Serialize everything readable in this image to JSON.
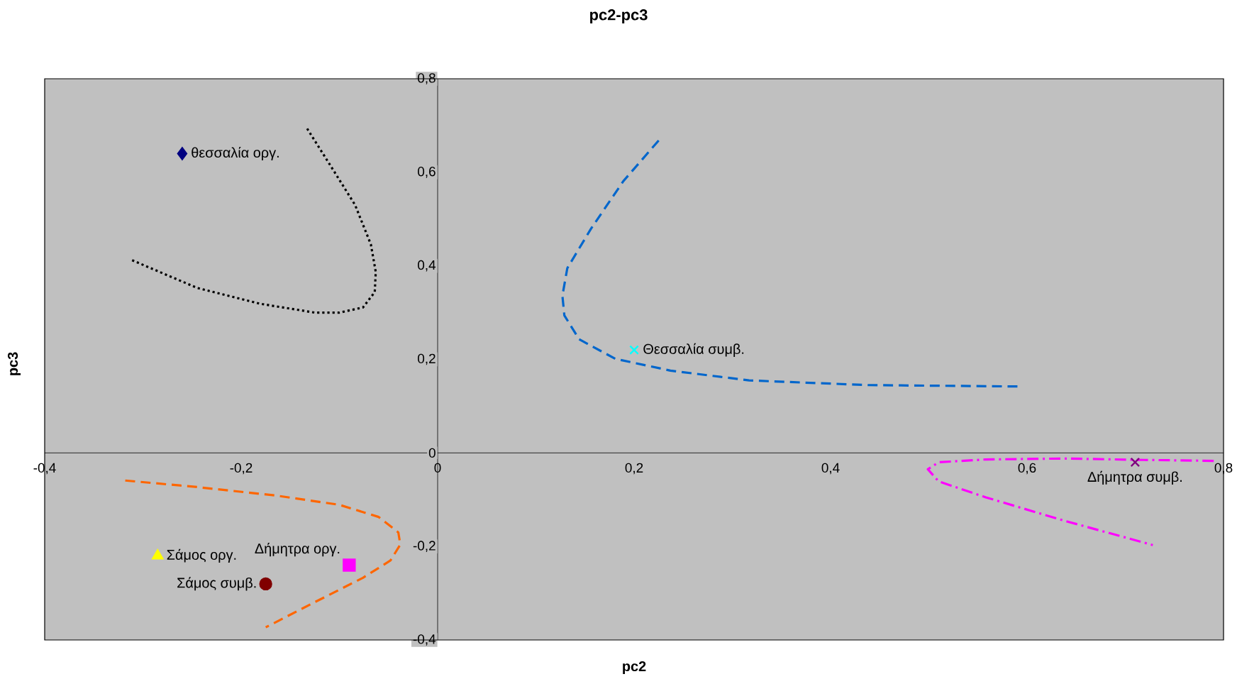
{
  "chart_data": {
    "type": "scatter",
    "title": "pc2-pc3",
    "xlabel": "pc2",
    "ylabel": "pc3",
    "xlim": [
      -0.4,
      0.8
    ],
    "ylim": [
      -0.4,
      0.8
    ],
    "xticks": [
      {
        "value": -0.4,
        "label": "-0,4"
      },
      {
        "value": -0.2,
        "label": "-0,2"
      },
      {
        "value": 0,
        "label": "0"
      },
      {
        "value": 0.2,
        "label": "0,2"
      },
      {
        "value": 0.4,
        "label": "0,4"
      },
      {
        "value": 0.6,
        "label": "0,6"
      },
      {
        "value": 0.8,
        "label": "0,8"
      }
    ],
    "yticks": [
      {
        "value": -0.4,
        "label": "-0,4"
      },
      {
        "value": -0.2,
        "label": "-0,2"
      },
      {
        "value": 0,
        "label": "0"
      },
      {
        "value": 0.2,
        "label": "0,2"
      },
      {
        "value": 0.4,
        "label": "0,4"
      },
      {
        "value": 0.6,
        "label": "0,6"
      },
      {
        "value": 0.8,
        "label": "0,8"
      }
    ],
    "series": [
      {
        "name": "θεσσαλία οργ.",
        "color": "#000080",
        "marker": "diamond",
        "x": [
          -0.26
        ],
        "values": [
          0.64
        ]
      },
      {
        "name": "Θεσσαλία συμβ.",
        "color": "#00ffff",
        "marker": "cross",
        "x": [
          0.2
        ],
        "values": [
          0.22
        ]
      },
      {
        "name": "Δήμητρα συμβ.",
        "color": "#800080",
        "marker": "cross",
        "x": [
          0.71
        ],
        "values": [
          -0.02
        ]
      },
      {
        "name": "Σάμος οργ.",
        "color": "#ffff00",
        "marker": "triangle",
        "x": [
          -0.285
        ],
        "values": [
          -0.22
        ]
      },
      {
        "name": "Δήμητρα οργ.",
        "color": "#ff00ff",
        "marker": "square",
        "x": [
          -0.09
        ],
        "values": [
          -0.24
        ]
      },
      {
        "name": "Σάμος συμβ.",
        "color": "#800000",
        "marker": "circle",
        "x": [
          -0.175
        ],
        "values": [
          -0.28
        ]
      },
      {
        "type": "line",
        "color": "#000000",
        "line_style": "dotted",
        "x": [
          -0.311,
          -0.245,
          -0.181,
          -0.125,
          -0.1,
          -0.076,
          -0.064,
          -0.063,
          -0.068,
          -0.084,
          -0.109,
          -0.133
        ],
        "values": [
          0.412,
          0.353,
          0.319,
          0.3,
          0.3,
          0.311,
          0.344,
          0.387,
          0.446,
          0.53,
          0.614,
          0.694
        ]
      },
      {
        "type": "line",
        "color": "#0066cc",
        "line_style": "dashed",
        "x": [
          0.225,
          0.189,
          0.156,
          0.132,
          0.127,
          0.129,
          0.144,
          0.181,
          0.237,
          0.317,
          0.438,
          0.593
        ],
        "values": [
          0.668,
          0.581,
          0.479,
          0.395,
          0.336,
          0.294,
          0.243,
          0.201,
          0.176,
          0.155,
          0.145,
          0.142
        ]
      },
      {
        "type": "line",
        "color": "#ff6600",
        "line_style": "dashed",
        "x": [
          -0.318,
          -0.245,
          -0.165,
          -0.1,
          -0.06,
          -0.04,
          -0.038,
          -0.048,
          -0.076,
          -0.125,
          -0.175
        ],
        "values": [
          -0.059,
          -0.073,
          -0.091,
          -0.111,
          -0.137,
          -0.17,
          -0.196,
          -0.23,
          -0.267,
          -0.319,
          -0.373
        ]
      },
      {
        "type": "line",
        "color": "#ff00ff",
        "line_style": "dashdot",
        "x": [
          0.79,
          0.719,
          0.638,
          0.558,
          0.51,
          0.499,
          0.51,
          0.558,
          0.638,
          0.728
        ],
        "values": [
          -0.017,
          -0.015,
          -0.012,
          -0.014,
          -0.02,
          -0.035,
          -0.061,
          -0.095,
          -0.145,
          -0.197
        ]
      }
    ]
  }
}
